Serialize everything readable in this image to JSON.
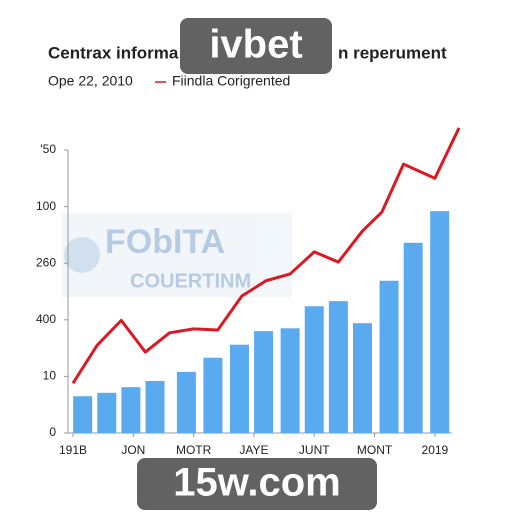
{
  "chart_data": {
    "type": "bar_line",
    "title_left": "Centrax informa",
    "title_right": "n reperument",
    "subtitle": "Ope 22, 2010",
    "xlim": [
      0,
      16
    ],
    "ylim": [
      0,
      5
    ],
    "yticks": [
      {
        "value": 0,
        "label": "0"
      },
      {
        "value": 1,
        "label": "10"
      },
      {
        "value": 2,
        "label": "400"
      },
      {
        "value": 3,
        "label": "260"
      },
      {
        "value": 4,
        "label": "100"
      },
      {
        "value": 5,
        "label": "'50"
      }
    ],
    "xticks": [
      {
        "value": 0,
        "label": "191B"
      },
      {
        "value": 2.5,
        "label": "JON"
      },
      {
        "value": 5,
        "label": "MOTR"
      },
      {
        "value": 7.5,
        "label": "JAYE"
      },
      {
        "value": 10,
        "label": "JUNT"
      },
      {
        "value": 12.5,
        "label": "MONT"
      },
      {
        "value": 15,
        "label": "2019"
      }
    ],
    "bars": {
      "color": "#5aaaf0",
      "x": [
        0.4,
        1.4,
        2.4,
        3.4,
        4.7,
        5.8,
        6.9,
        7.9,
        9,
        10,
        11,
        12,
        13.1,
        14.1,
        15.2
      ],
      "values": [
        0.65,
        0.71,
        0.81,
        0.92,
        1.08,
        1.33,
        1.56,
        1.8,
        1.85,
        2.24,
        2.33,
        1.94,
        2.69,
        3.36,
        3.92
      ]
    },
    "line": {
      "name": "Fiindla Corigrented",
      "color": "#d91a22",
      "x": [
        0,
        1,
        2,
        3,
        4,
        5,
        6,
        7,
        8,
        9,
        10,
        11,
        12,
        12.8,
        13.7,
        15,
        16
      ],
      "values": [
        0.88,
        1.55,
        1.99,
        1.43,
        1.77,
        1.84,
        1.82,
        2.42,
        2.69,
        2.81,
        3.2,
        3.02,
        3.57,
        3.9,
        4.75,
        4.5,
        5.39
      ]
    },
    "watermarks": {
      "logo_top": "FObITA",
      "logo_bottom": "COUERTINM",
      "top": "ivbet",
      "bottom": "15w.com"
    }
  }
}
